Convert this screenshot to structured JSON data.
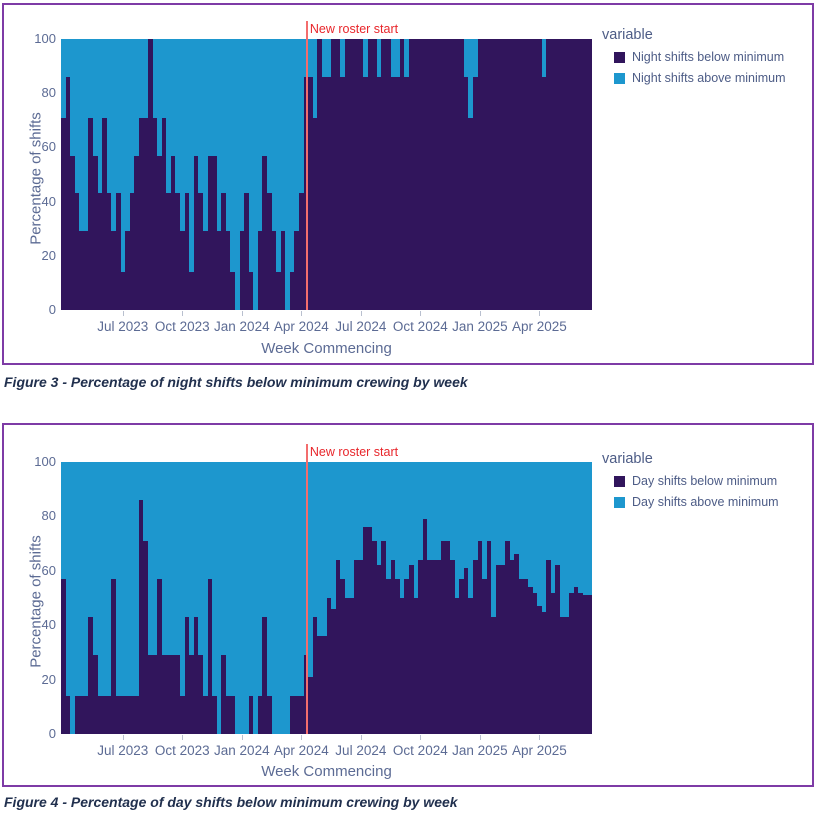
{
  "colors": {
    "below_series": "#31155c",
    "above_series": "#1d97ce",
    "figure_border": "#7e3ba6",
    "axis_text": "#5c6b94",
    "caption_text": "#21304e",
    "annotation_line": "#f36d6d",
    "annotation_text": "#e8262b"
  },
  "figures": [
    {
      "caption": "Figure 3 - Percentage of night shifts below minimum crewing by week"
    },
    {
      "caption": "Figure 4 - Percentage of day shifts below minimum crewing by week"
    }
  ],
  "chart_data": [
    {
      "type": "bar",
      "stacked": true,
      "normalized_to_100": true,
      "ylabel": "Percentage of shifts",
      "xlabel": "Week Commencing",
      "ylim": [
        0,
        100
      ],
      "yticks": [
        0,
        20,
        40,
        60,
        80,
        100
      ],
      "grid": false,
      "legend_position": "right",
      "legend_title": "variable",
      "n_weeks": 116,
      "x_tick_labels": [
        "Jul 2023",
        "Oct 2023",
        "Jan 2024",
        "Apr 2024",
        "Jul 2024",
        "Oct 2024",
        "Jan 2025",
        "Apr 2025"
      ],
      "x_tick_week_indices": [
        13,
        26,
        39,
        52,
        65,
        78,
        91,
        104
      ],
      "annotation": {
        "text": "New roster start",
        "week_index": 53.5
      },
      "series": [
        {
          "name": "Night shifts below minimum",
          "color": "#31155c",
          "values": [
            71,
            86,
            57,
            43,
            29,
            29,
            71,
            57,
            43,
            71,
            43,
            29,
            43,
            14,
            29,
            43,
            57,
            71,
            71,
            100,
            71,
            57,
            71,
            43,
            57,
            43,
            29,
            43,
            14,
            57,
            43,
            29,
            57,
            57,
            29,
            43,
            29,
            14,
            0,
            29,
            43,
            14,
            0,
            29,
            57,
            43,
            29,
            14,
            29,
            0,
            14,
            29,
            43,
            86,
            86,
            71,
            100,
            86,
            86,
            100,
            100,
            86,
            100,
            100,
            100,
            100,
            86,
            100,
            100,
            86,
            100,
            100,
            86,
            86,
            100,
            86,
            100,
            100,
            100,
            100,
            100,
            100,
            100,
            100,
            100,
            100,
            100,
            100,
            86,
            71,
            86,
            100,
            100,
            100,
            100,
            100,
            100,
            100,
            100,
            100,
            100,
            100,
            100,
            100,
            100,
            86,
            100,
            100,
            100,
            100,
            100,
            100,
            100,
            100,
            100,
            100
          ]
        },
        {
          "name": "Night shifts above minimum",
          "color": "#1d97ce",
          "derived": "100 minus below values"
        }
      ]
    },
    {
      "type": "bar",
      "stacked": true,
      "normalized_to_100": true,
      "ylabel": "Percentage of shifts",
      "xlabel": "Week Commencing",
      "ylim": [
        0,
        100
      ],
      "yticks": [
        0,
        20,
        40,
        60,
        80,
        100
      ],
      "grid": false,
      "legend_position": "right",
      "legend_title": "variable",
      "n_weeks": 116,
      "x_tick_labels": [
        "Jul 2023",
        "Oct 2023",
        "Jan 2024",
        "Apr 2024",
        "Jul 2024",
        "Oct 2024",
        "Jan 2025",
        "Apr 2025"
      ],
      "x_tick_week_indices": [
        13,
        26,
        39,
        52,
        65,
        78,
        91,
        104
      ],
      "annotation": {
        "text": "New roster start",
        "week_index": 53.5
      },
      "series": [
        {
          "name": "Day shifts below minimum",
          "color": "#31155c",
          "values": [
            57,
            14,
            0,
            14,
            14,
            14,
            43,
            29,
            14,
            14,
            14,
            57,
            14,
            14,
            14,
            14,
            14,
            86,
            71,
            29,
            29,
            57,
            29,
            29,
            29,
            29,
            14,
            43,
            29,
            43,
            29,
            14,
            57,
            14,
            0,
            29,
            14,
            14,
            0,
            0,
            0,
            14,
            0,
            14,
            43,
            14,
            0,
            0,
            0,
            0,
            14,
            14,
            14,
            29,
            21,
            43,
            36,
            36,
            50,
            46,
            64,
            57,
            50,
            50,
            64,
            64,
            76,
            76,
            71,
            62,
            71,
            57,
            64,
            57,
            50,
            57,
            62,
            50,
            64,
            79,
            64,
            64,
            64,
            71,
            71,
            64,
            50,
            57,
            61,
            50,
            64,
            71,
            57,
            71,
            43,
            62,
            62,
            71,
            64,
            66,
            57,
            57,
            54,
            52,
            47,
            45,
            64,
            52,
            62,
            43,
            43,
            52,
            54,
            52,
            51,
            51
          ]
        },
        {
          "name": "Day shifts above minimum",
          "color": "#1d97ce",
          "derived": "100 minus below values"
        }
      ]
    }
  ]
}
